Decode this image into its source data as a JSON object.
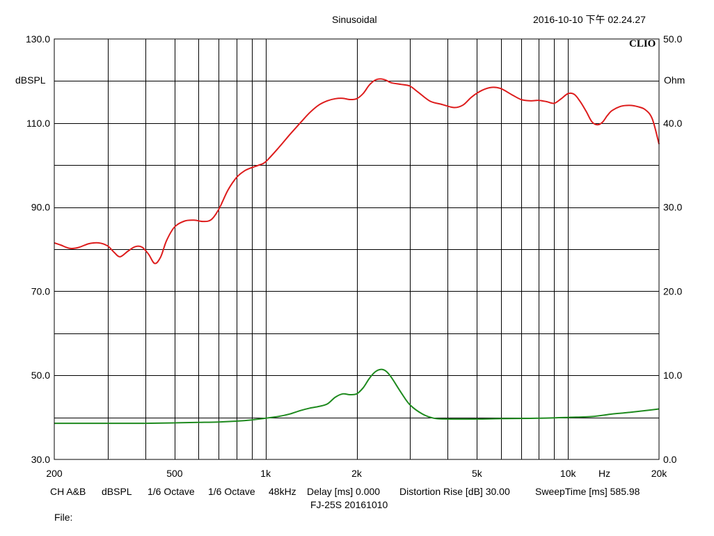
{
  "header": {
    "title": "Sinusoidal",
    "timestamp": "2016-10-10 下午 02.24.27",
    "logo": "CLIO"
  },
  "footer": {
    "settings": [
      "CH A&B",
      "dBSPL",
      "1/6 Octave",
      "1/6 Octave",
      "48kHz",
      "Delay [ms] 0.000",
      "Distortion Rise [dB] 30.00",
      "SweepTime [ms] 585.98"
    ],
    "subtitle": "FJ-25S   20161010",
    "file": "File:"
  },
  "chart_data": {
    "type": "line",
    "x_scale": "log",
    "xlim": [
      200,
      20000
    ],
    "ylim_left": [
      30,
      130
    ],
    "ylim_right": [
      0,
      50
    ],
    "ylabel_left": "dBSPL",
    "ylabel_right": "Ohm",
    "xlabel": "Hz",
    "grid": true,
    "x_tick_labels": [
      {
        "value": 200,
        "label": "200"
      },
      {
        "value": 500,
        "label": "500"
      },
      {
        "value": 1000,
        "label": "1k"
      },
      {
        "value": 2000,
        "label": "2k"
      },
      {
        "value": 5000,
        "label": "5k"
      },
      {
        "value": 10000,
        "label": "10k"
      },
      {
        "value": 20000,
        "label": "20k"
      }
    ],
    "y_left_tick_labels": [
      {
        "value": 130,
        "label": "130.0"
      },
      {
        "value": 110,
        "label": "110.0"
      },
      {
        "value": 90,
        "label": "90.0"
      },
      {
        "value": 70,
        "label": "70.0"
      },
      {
        "value": 50,
        "label": "50.0"
      },
      {
        "value": 30,
        "label": "30.0"
      }
    ],
    "y_right_tick_labels": [
      {
        "value": 50,
        "label": "50.0"
      },
      {
        "value": 40,
        "label": "40.0"
      },
      {
        "value": 30,
        "label": "30.0"
      },
      {
        "value": 20,
        "label": "20.0"
      },
      {
        "value": 10,
        "label": "10.0"
      },
      {
        "value": 0,
        "label": "0.0"
      }
    ],
    "series": [
      {
        "color": "#dd1c1c",
        "axis": "left",
        "x": [
          200,
          210,
          225,
          240,
          260,
          280,
          300,
          315,
          330,
          350,
          370,
          390,
          410,
          430,
          450,
          470,
          500,
          540,
          580,
          620,
          660,
          700,
          750,
          800,
          850,
          900,
          950,
          1000,
          1100,
          1200,
          1300,
          1400,
          1500,
          1600,
          1700,
          1800,
          1900,
          2000,
          2100,
          2200,
          2300,
          2400,
          2500,
          2600,
          2800,
          3000,
          3200,
          3500,
          3800,
          4200,
          4500,
          4800,
          5200,
          5600,
          6000,
          6500,
          7000,
          7500,
          8000,
          8500,
          9000,
          9500,
          10000,
          10500,
          11000,
          11500,
          12000,
          12500,
          13000,
          13500,
          14000,
          15000,
          16000,
          17000,
          18000,
          19000,
          20000
        ],
        "y": [
          81.5,
          81.0,
          80.2,
          80.4,
          81.3,
          81.5,
          80.8,
          79.3,
          78.2,
          79.5,
          80.6,
          80.5,
          78.8,
          76.6,
          78.2,
          82.0,
          85.3,
          86.7,
          86.9,
          86.6,
          87.0,
          89.5,
          94.0,
          97.0,
          98.6,
          99.4,
          100.0,
          100.8,
          104.0,
          107.2,
          110.0,
          112.5,
          114.3,
          115.3,
          115.8,
          115.9,
          115.6,
          115.8,
          117.0,
          119.0,
          120.2,
          120.5,
          120.2,
          119.6,
          119.2,
          118.8,
          117.3,
          115.2,
          114.5,
          113.7,
          114.3,
          116.2,
          117.8,
          118.5,
          118.2,
          116.8,
          115.6,
          115.3,
          115.4,
          115.1,
          114.7,
          115.8,
          117.0,
          116.8,
          115.0,
          112.7,
          110.3,
          109.6,
          110.2,
          111.8,
          113.0,
          114.0,
          114.2,
          113.9,
          113.2,
          111.0,
          105.0
        ]
      },
      {
        "color": "#1e8a1e",
        "axis": "right",
        "x": [
          200,
          300,
          400,
          500,
          600,
          700,
          800,
          900,
          1000,
          1100,
          1200,
          1300,
          1400,
          1500,
          1600,
          1700,
          1800,
          1900,
          2000,
          2100,
          2200,
          2300,
          2400,
          2500,
          2600,
          2800,
          3000,
          3300,
          3600,
          4000,
          5000,
          6000,
          8000,
          10000,
          12000,
          14000,
          16000,
          18000,
          20000
        ],
        "y": [
          4.3,
          4.3,
          4.3,
          4.35,
          4.4,
          4.45,
          4.55,
          4.7,
          4.9,
          5.1,
          5.4,
          5.8,
          6.1,
          6.3,
          6.6,
          7.4,
          7.8,
          7.7,
          7.8,
          8.5,
          9.6,
          10.4,
          10.7,
          10.5,
          9.8,
          8.0,
          6.5,
          5.4,
          4.9,
          4.8,
          4.8,
          4.85,
          4.9,
          5.0,
          5.1,
          5.4,
          5.6,
          5.8,
          6.0
        ]
      }
    ]
  }
}
